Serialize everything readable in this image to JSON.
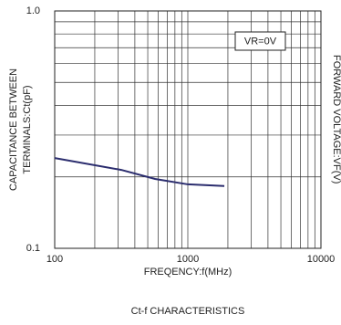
{
  "chart_data": {
    "type": "line",
    "title": "Ct-f CHARACTERISTICS",
    "xlabel": "FREQENCY:f(MHz)",
    "ylabel": [
      "CAPACITANCE BETWEEN",
      "TERMINALS:Ct(pF)"
    ],
    "y2label": "FORWARD VOLTAGE:VF(V)",
    "annotation": "VR=0V",
    "x": [
      100,
      316,
      567,
      1000,
      1880
    ],
    "series": [
      {
        "color": "#2b2d6e",
        "values": [
          0.24,
          0.214,
          0.196,
          0.186,
          0.183
        ]
      }
    ],
    "xscale": "log",
    "yscale": "log",
    "xlim": [
      100,
      10000
    ],
    "ylim": [
      0.1,
      1
    ],
    "xticks": [
      100,
      1000,
      10000
    ],
    "yticks": [
      0.1,
      {
        "value": 1,
        "label": "1.0"
      }
    ],
    "xminor": [
      200,
      300,
      400,
      500,
      600,
      700,
      800,
      900,
      2000,
      3000,
      4000,
      5000,
      6000,
      7000,
      8000,
      9000
    ],
    "yminor": [
      0.2,
      0.3,
      0.4,
      0.5,
      0.6,
      0.7,
      0.8,
      0.9
    ],
    "grid": true
  }
}
